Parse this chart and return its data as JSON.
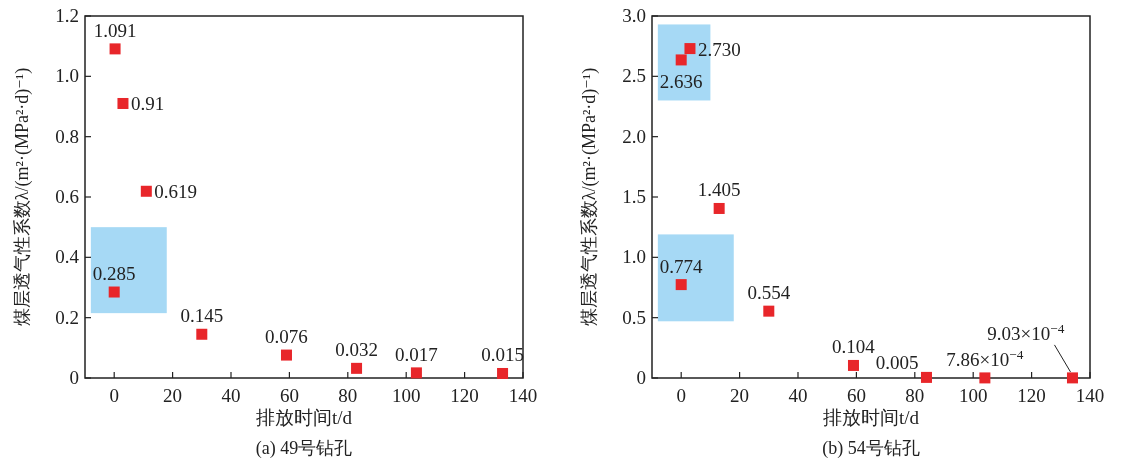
{
  "chart_data": [
    {
      "type": "scatter",
      "title": "(a) 49号钻孔",
      "xlabel": "排放时间t/d",
      "ylabel": "煤层透气性系数λ/(m²·(MPa²·d)⁻¹)",
      "marker": "square",
      "x": [
        0.3,
        3,
        11,
        0,
        30,
        59,
        83,
        103.5,
        133
      ],
      "series": [
        {
          "color": "#e8262a",
          "values": [
            1.091,
            0.91,
            0.619,
            0.285,
            0.145,
            0.076,
            0.032,
            0.017,
            0.015
          ],
          "value_labels": [
            "1.091",
            "0.91",
            "0.619",
            "0.285",
            "0.145",
            "0.076",
            "0.032",
            "0.017",
            "0.015"
          ]
        }
      ],
      "xlim": [
        -10,
        140
      ],
      "xticks": [
        0,
        20,
        40,
        60,
        80,
        100,
        120,
        140
      ],
      "ylim": [
        0,
        1.2
      ],
      "yticks": [
        0,
        {
          "value": 0.2,
          "label": "0.2"
        },
        {
          "value": 0.4,
          "label": "0.4"
        },
        {
          "value": 0.6,
          "label": "0.6"
        },
        {
          "value": 0.8,
          "label": "0.8"
        },
        {
          "value": 1,
          "label": "1.0"
        },
        {
          "value": 1.2,
          "label": "1.2"
        }
      ]
    },
    {
      "type": "scatter",
      "title": "(b) 54号钻孔",
      "xlabel": "排放时间t/d",
      "ylabel": "煤层透气性系数λ/(m²·(MPa²·d)⁻¹)",
      "marker": "square",
      "x": [
        0,
        3,
        13,
        0,
        30,
        59,
        84,
        104,
        134
      ],
      "series": [
        {
          "color": "#e8262a",
          "values": [
            2.636,
            2.73,
            1.405,
            0.774,
            0.554,
            0.104,
            0.005,
            0.000786,
            0.000903
          ],
          "value_labels": [
            "2.636",
            "2.730",
            "1.405",
            "0.774",
            "0.554",
            "0.104",
            "0.005",
            "7.86×10$^{−4}$",
            "9.03×10$^{−4}$"
          ]
        }
      ],
      "xlim": [
        -10,
        140
      ],
      "xticks": [
        0,
        20,
        40,
        60,
        80,
        100,
        120,
        140
      ],
      "ylim": [
        0,
        3
      ],
      "yticks": [
        0,
        {
          "value": 0.5,
          "label": "0.5"
        },
        {
          "value": 1,
          "label": "1.0"
        },
        {
          "value": 1.5,
          "label": "1.5"
        },
        {
          "value": 2,
          "label": "2.0"
        },
        {
          "value": 2.5,
          "label": "2.5"
        },
        {
          "value": 3,
          "label": "3.0"
        }
      ]
    }
  ]
}
